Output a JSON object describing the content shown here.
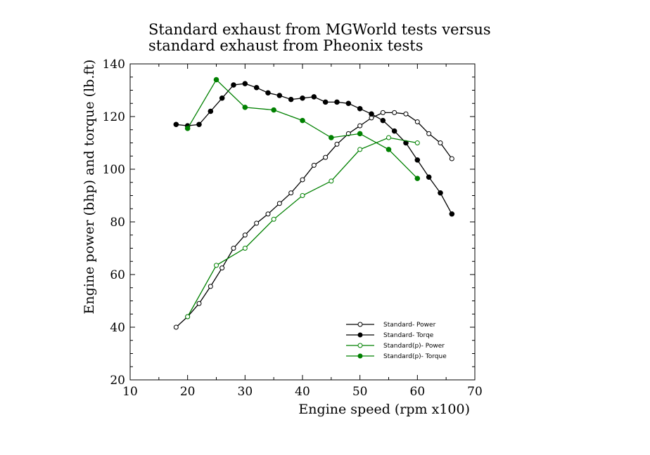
{
  "colors": {
    "black": "#000000",
    "green": "#008000"
  },
  "chart_data": {
    "type": "line",
    "title_lines": [
      "Standard exhaust from MGWorld tests versus",
      "standard exhaust from Pheonix tests"
    ],
    "xlabel": "Engine speed (rpm x100)",
    "ylabel": "Engine power (bhp) and torque (lb.ft)",
    "xlim": [
      10,
      70
    ],
    "ylim": [
      20,
      140
    ],
    "x_ticks": [
      10,
      20,
      30,
      40,
      50,
      60,
      70
    ],
    "y_ticks": [
      20,
      40,
      60,
      80,
      100,
      120,
      140
    ],
    "grid": false,
    "legend_position": "bottom-right",
    "series": [
      {
        "name": "Standard- Power",
        "color": "#000000",
        "marker": "open-circle",
        "x": [
          18,
          20,
          22,
          24,
          26,
          28,
          30,
          32,
          34,
          36,
          38,
          40,
          42,
          44,
          46,
          48,
          50,
          52,
          54,
          56,
          58,
          60,
          62,
          64,
          66
        ],
        "y": [
          40,
          44,
          49,
          55.5,
          62.5,
          70,
          75,
          79.5,
          83,
          87,
          91,
          96,
          101.5,
          104.5,
          109.5,
          113.5,
          116.5,
          119.5,
          121.5,
          121.5,
          121,
          118,
          113.5,
          110,
          104
        ]
      },
      {
        "name": "Standard- Torqe",
        "color": "#000000",
        "marker": "filled-circle",
        "x": [
          18,
          20,
          22,
          24,
          26,
          28,
          30,
          32,
          34,
          36,
          38,
          40,
          42,
          44,
          46,
          48,
          50,
          52,
          54,
          56,
          58,
          60,
          62,
          64,
          66
        ],
        "y": [
          117,
          116.5,
          117,
          122,
          127,
          132,
          132.5,
          131,
          129,
          128,
          126.5,
          127,
          127.5,
          125.5,
          125.5,
          125,
          123,
          121,
          118.5,
          114.5,
          110,
          103.5,
          97,
          91,
          83
        ]
      },
      {
        "name": "Standard(p)- Power",
        "color": "#008000",
        "marker": "open-circle",
        "x": [
          20,
          25,
          30,
          35,
          40,
          45,
          50,
          55,
          60
        ],
        "y": [
          44,
          63.5,
          70,
          81,
          90,
          95.5,
          107.5,
          112,
          110
        ]
      },
      {
        "name": "Standard(p)- Torque",
        "color": "#008000",
        "marker": "filled-circle",
        "x": [
          20,
          25,
          30,
          35,
          40,
          45,
          50,
          55,
          60
        ],
        "y": [
          115.5,
          134,
          123.5,
          122.5,
          118.5,
          112,
          113.5,
          107.5,
          96.5
        ]
      }
    ]
  }
}
